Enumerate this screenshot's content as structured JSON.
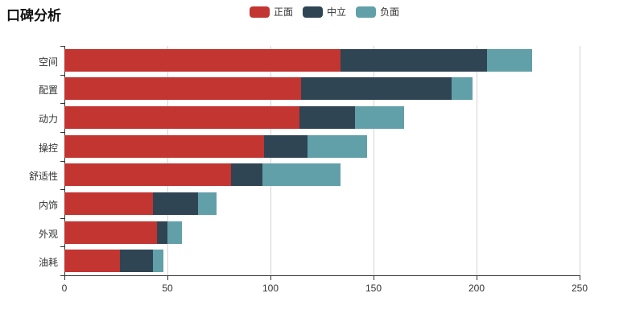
{
  "title": "口碑分析",
  "legend": {
    "items": [
      {
        "label": "正面",
        "color": "#c23531",
        "key": "positive"
      },
      {
        "label": "中立",
        "color": "#2f4554",
        "key": "neutral"
      },
      {
        "label": "负面",
        "color": "#61a0a8",
        "key": "negative"
      }
    ]
  },
  "colors": {
    "positive": "#c23531",
    "neutral": "#2f4554",
    "negative": "#61a0a8",
    "axis": "#333333",
    "grid": "#d4d4da",
    "background": "#ffffff"
  },
  "chart_data": {
    "type": "bar",
    "orientation": "horizontal",
    "stacked": true,
    "title": "口碑分析",
    "categories": [
      "空间",
      "配置",
      "动力",
      "操控",
      "舒适性",
      "内饰",
      "外观",
      "油耗"
    ],
    "series": [
      {
        "name": "正面",
        "key": "positive",
        "color": "#c23531",
        "values": [
          134,
          115,
          114,
          97,
          81,
          43,
          45,
          27
        ]
      },
      {
        "name": "中立",
        "key": "neutral",
        "color": "#2f4554",
        "values": [
          71,
          73,
          27,
          21,
          15,
          22,
          5,
          16
        ]
      },
      {
        "name": "负面",
        "key": "negative",
        "color": "#61a0a8",
        "values": [
          22,
          10,
          24,
          29,
          38,
          9,
          7,
          5
        ]
      }
    ],
    "xlabel": "",
    "ylabel": "",
    "xlim": [
      0,
      250
    ],
    "xticks": [
      0,
      50,
      100,
      150,
      200,
      250
    ],
    "grid": true,
    "legend_position": "top"
  }
}
